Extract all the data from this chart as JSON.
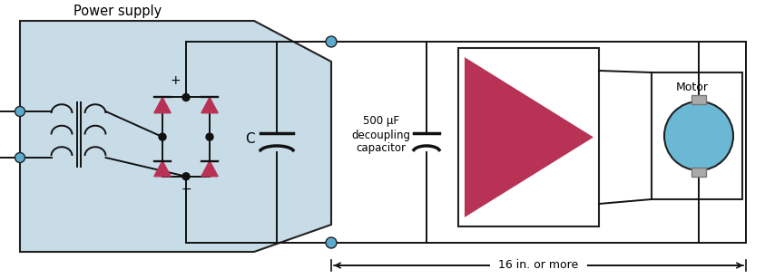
{
  "bg_color": "#ffffff",
  "ps_fill": "#c8dce8",
  "ps_border": "#222222",
  "diode_color": "#b83255",
  "wire_color": "#111111",
  "node_color": "#5aabcf",
  "node_edge": "#222222",
  "amp_color": "#b83255",
  "motor_fill": "#6ab8d4",
  "motor_border": "#222222",
  "term_fill": "#aaaaaa",
  "title": "Power supply",
  "cap_label": "C",
  "cap2_label": "500 μF\ndecoupling\ncapacitor",
  "motor_label": "Motor",
  "distance_label": "— 16 in. or more —→",
  "plus_label": "+",
  "minus_label": "−"
}
